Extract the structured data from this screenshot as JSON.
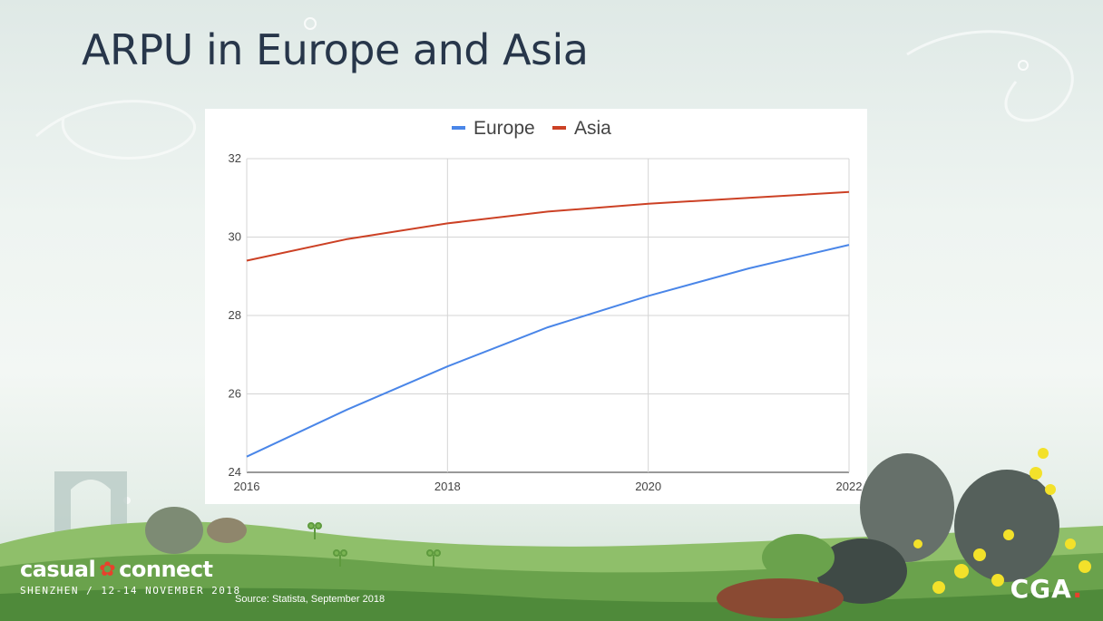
{
  "slide": {
    "title": "ARPU in Europe and Asia",
    "source": "Source: Statista, September 2018"
  },
  "branding": {
    "event_name": "casual connect",
    "event_word1": "casual",
    "event_word2": "connect",
    "event_details": "SHENZHEN / 12-14 NOVEMBER 2018",
    "org_logo": "CGA",
    "accent_color": "#e8412c"
  },
  "chart_data": {
    "type": "line",
    "x": [
      2016,
      2017,
      2018,
      2019,
      2020,
      2021,
      2022
    ],
    "x_ticks": [
      2016,
      2018,
      2020,
      2022
    ],
    "y_ticks": [
      24,
      26,
      28,
      30,
      32
    ],
    "ylim": [
      24,
      32
    ],
    "grid": true,
    "legend_position": "top-center",
    "series": [
      {
        "name": "Europe",
        "color": "#4a86e8",
        "values": [
          24.4,
          25.6,
          26.7,
          27.7,
          28.5,
          29.2,
          29.8
        ]
      },
      {
        "name": "Asia",
        "color": "#cc4125",
        "values": [
          29.4,
          29.95,
          30.35,
          30.65,
          30.85,
          31.0,
          31.15
        ]
      }
    ]
  }
}
